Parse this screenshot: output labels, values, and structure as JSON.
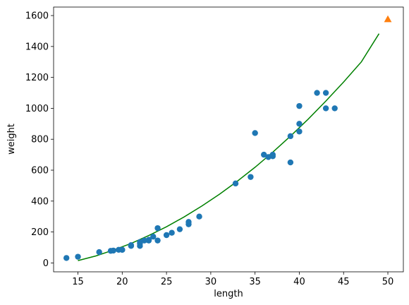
{
  "chart_data": {
    "type": "scatter",
    "xlabel": "length",
    "ylabel": "weight",
    "xlim": [
      12.25,
      51.75
    ],
    "ylim": [
      -57.5,
      1655
    ],
    "x_ticks": [
      15,
      20,
      25,
      30,
      35,
      40,
      45,
      50
    ],
    "y_ticks": [
      0,
      200,
      400,
      600,
      800,
      1000,
      1200,
      1400,
      1600
    ],
    "grid": false,
    "series": [
      {
        "kind": "scatter",
        "marker": "circle",
        "color": "#1f77b4",
        "x": [
          13.7,
          15.0,
          17.4,
          18.7,
          19.0,
          19.6,
          20.0,
          20.0,
          21.0,
          21.0,
          22.0,
          22.0,
          22.0,
          22.5,
          23.0,
          23.0,
          23.5,
          24.0,
          24.0,
          25.0,
          25.6,
          26.5,
          27.5,
          27.5,
          28.7,
          32.8,
          34.5,
          35.0,
          36.0,
          36.5,
          37.0,
          37.0,
          39.0,
          39.0,
          40.0,
          40.0,
          40.0,
          42.0,
          43.0,
          43.0,
          44.0
        ],
        "y": [
          32,
          40,
          70,
          78,
          80,
          85,
          85,
          85,
          110,
          115,
          110,
          125,
          135,
          145,
          145,
          150,
          170,
          145,
          225,
          180,
          195,
          218,
          250,
          265,
          300,
          514,
          556,
          840,
          700,
          685,
          690,
          700,
          650,
          820,
          850,
          900,
          1015,
          1100,
          1000,
          1100,
          1000
        ]
      },
      {
        "kind": "scatter",
        "marker": "triangle",
        "color": "#ff7f0e",
        "x": [
          50.0
        ],
        "y": [
          1574
        ]
      },
      {
        "kind": "line",
        "color": "#008000",
        "x": [
          15,
          17,
          19,
          21,
          23,
          25,
          27,
          29,
          31,
          33,
          35,
          37,
          39,
          41,
          43,
          45,
          47,
          49
        ],
        "y": [
          15,
          45,
          83,
          126,
          177,
          234,
          298,
          368,
          445,
          529,
          619,
          716,
          820,
          930,
          1047,
          1170,
          1300,
          1483
        ]
      }
    ]
  }
}
